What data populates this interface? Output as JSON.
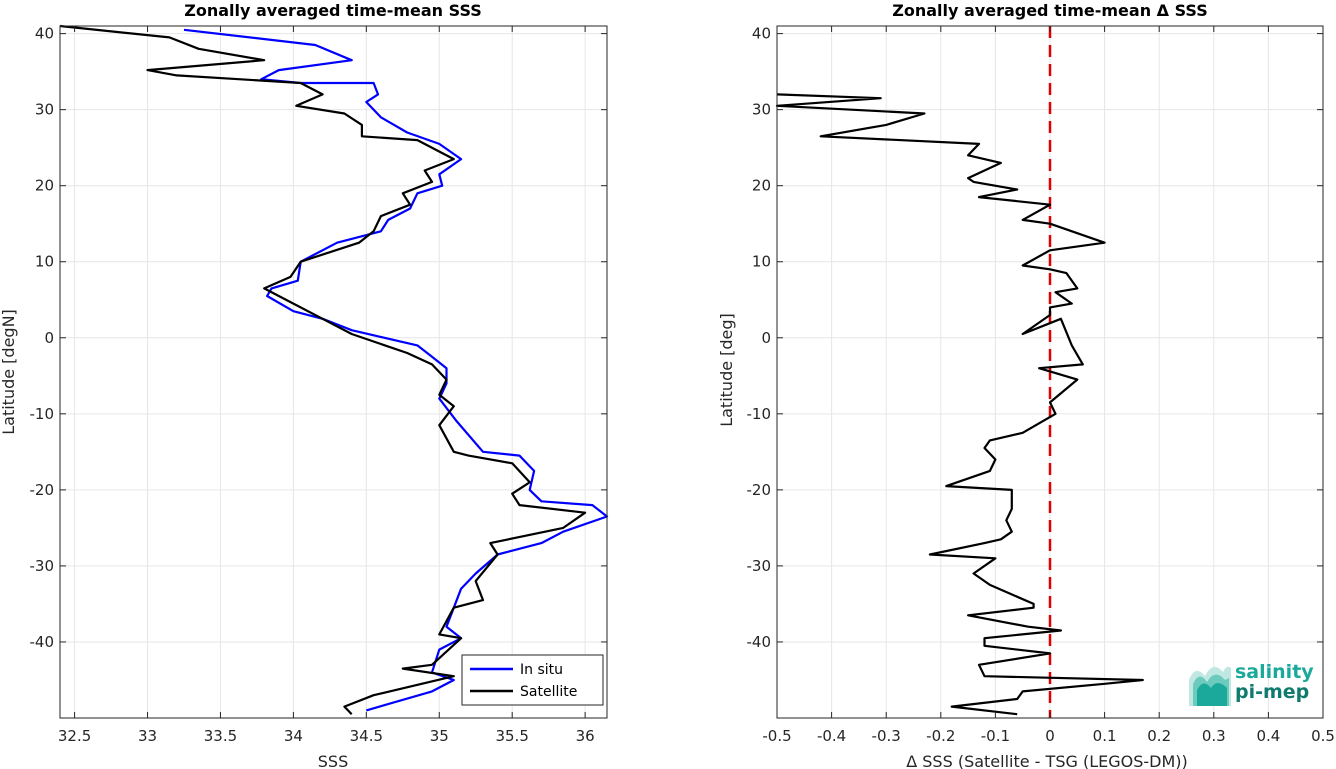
{
  "colors": {
    "in_situ": "#0000ff",
    "satellite": "#000000",
    "zero_line": "#e00000",
    "logo_teal": "#1aa99a",
    "logo_dark": "#0f7a6e"
  },
  "logo": {
    "line1": "salinity",
    "line2": "pi-mep"
  },
  "chart_data": [
    {
      "type": "line",
      "title": "Zonally averaged time-mean SSS",
      "xlabel": "SSS",
      "ylabel": "Latitude [degN]",
      "xlim": [
        32.4,
        36.15
      ],
      "ylim": [
        -50,
        41
      ],
      "xticks": [
        32.5,
        33,
        33.5,
        34,
        34.5,
        35,
        35.5,
        36
      ],
      "xtick_labels": [
        "32.5",
        "33",
        "33.5",
        "34",
        "34.5",
        "35",
        "35.5",
        "36"
      ],
      "yticks": [
        40,
        30,
        20,
        10,
        0,
        -10,
        -20,
        -30,
        -40
      ],
      "ytick_labels": [
        "40",
        "30",
        "20",
        "10",
        "0",
        "-10",
        "-20",
        "-30",
        "-40"
      ],
      "grid": true,
      "legend": "bottom-right",
      "series": [
        {
          "name": "In situ",
          "color": "#0000ff",
          "x": [
            33.25,
            34.15,
            34.4,
            33.9,
            33.78,
            34.05,
            34.55,
            34.58,
            34.5,
            34.6,
            34.78,
            35.0,
            35.15,
            35.0,
            35.02,
            34.85,
            34.8,
            34.65,
            34.6,
            34.3,
            34.05,
            34.03,
            33.85,
            33.82,
            34.0,
            34.2,
            34.4,
            34.85,
            34.95,
            35.05,
            35.05,
            35.0,
            35.12,
            35.3,
            35.55,
            35.65,
            35.62,
            35.7,
            36.05,
            36.15,
            35.85,
            35.7,
            35.4,
            35.25,
            35.15,
            35.05,
            35.15,
            35.0,
            34.95,
            35.1,
            34.95,
            34.5
          ],
          "y": [
            40.5,
            38.5,
            36.5,
            35.2,
            34.0,
            33.5,
            33.5,
            32.0,
            31.0,
            29.0,
            27.0,
            25.5,
            23.5,
            21.5,
            20.0,
            19.0,
            17.0,
            15.5,
            14.0,
            12.5,
            10.0,
            7.5,
            6.5,
            5.5,
            3.5,
            2.5,
            1.0,
            -1.0,
            -2.5,
            -4.0,
            -6.0,
            -8.0,
            -11.0,
            -15.0,
            -15.5,
            -17.5,
            -20.0,
            -21.5,
            -22.0,
            -23.5,
            -25.5,
            -27.0,
            -28.5,
            -31.0,
            -33.0,
            -38.0,
            -39.5,
            -41.0,
            -44.0,
            -45.0,
            -46.5,
            -49.0
          ]
        },
        {
          "name": "Satellite",
          "color": "#000000",
          "x": [
            32.4,
            33.15,
            33.35,
            33.8,
            33.0,
            33.2,
            34.05,
            34.2,
            34.02,
            34.35,
            34.47,
            34.47,
            34.85,
            35.1,
            34.9,
            34.95,
            34.75,
            34.8,
            34.6,
            34.55,
            34.45,
            34.05,
            33.98,
            33.8,
            34.0,
            34.2,
            34.4,
            34.78,
            34.95,
            35.05,
            35.0,
            35.1,
            35.0,
            35.1,
            35.2,
            35.5,
            35.62,
            35.5,
            35.55,
            36.0,
            35.85,
            35.35,
            35.4,
            35.25,
            35.3,
            35.1,
            35.0,
            35.15,
            34.95,
            34.75,
            35.1,
            34.55,
            34.35,
            34.4
          ],
          "y": [
            41.0,
            39.5,
            38.0,
            36.5,
            35.2,
            34.5,
            33.5,
            32.0,
            30.5,
            29.5,
            28.0,
            26.5,
            26.0,
            23.5,
            22.0,
            20.5,
            19.0,
            17.5,
            16.0,
            14.0,
            12.5,
            10.0,
            8.0,
            6.5,
            4.5,
            2.5,
            0.5,
            -2.0,
            -3.5,
            -5.5,
            -7.5,
            -9.0,
            -11.5,
            -15.0,
            -15.5,
            -16.5,
            -19.0,
            -20.5,
            -22.0,
            -23.0,
            -25.0,
            -27.0,
            -28.5,
            -32.0,
            -34.5,
            -35.5,
            -39.0,
            -39.5,
            -43.0,
            -43.5,
            -44.5,
            -47.0,
            -48.5,
            -49.5
          ]
        }
      ]
    },
    {
      "type": "line",
      "title": "Zonally averaged time-mean Δ SSS",
      "xlabel": "Δ SSS (Satellite - TSG (LEGOS-DM))",
      "ylabel": "Latitude [deg]",
      "xlim": [
        -0.5,
        0.5
      ],
      "ylim": [
        -50,
        41
      ],
      "xticks": [
        -0.5,
        -0.4,
        -0.3,
        -0.2,
        -0.1,
        0,
        0.1,
        0.2,
        0.3,
        0.4,
        0.5
      ],
      "xtick_labels": [
        "-0.5",
        "-0.4",
        "-0.3",
        "-0.2",
        "-0.1",
        "0",
        "0.1",
        "0.2",
        "0.3",
        "0.4",
        "0.5"
      ],
      "yticks": [
        40,
        30,
        20,
        10,
        0,
        -10,
        -20,
        -30,
        -40
      ],
      "ytick_labels": [
        "40",
        "30",
        "20",
        "10",
        "0",
        "-10",
        "-20",
        "-30",
        "-40"
      ],
      "grid": true,
      "reference_line": {
        "x": 0,
        "style": "dashed",
        "color": "#e00000"
      },
      "series": [
        {
          "color": "#000000",
          "x": [
            -0.5,
            -0.31,
            -0.5,
            -0.23,
            -0.3,
            -0.42,
            -0.13,
            -0.15,
            -0.09,
            -0.15,
            -0.14,
            -0.06,
            -0.13,
            0.0,
            -0.05,
            0.0,
            0.1,
            0.0,
            -0.05,
            0.0,
            0.03,
            0.05,
            0.01,
            0.04,
            0.0,
            0.0,
            -0.05,
            0.02,
            0.04,
            0.06,
            -0.02,
            0.05,
            0.0,
            0.01,
            -0.05,
            -0.11,
            -0.12,
            -0.1,
            -0.11,
            -0.19,
            -0.07,
            -0.07,
            -0.08,
            -0.07,
            -0.09,
            -0.12,
            -0.22,
            -0.1,
            -0.14,
            -0.11,
            -0.03,
            -0.03,
            -0.15,
            -0.04,
            0.02,
            -0.12,
            -0.12,
            0.0,
            -0.13,
            -0.12,
            0.17,
            0.1,
            -0.05,
            -0.06,
            -0.18,
            -0.06
          ],
          "y": [
            32.0,
            31.5,
            30.5,
            29.5,
            28.0,
            26.5,
            25.5,
            24.0,
            23.0,
            21.0,
            20.5,
            19.5,
            18.5,
            17.5,
            15.5,
            15.0,
            12.5,
            11.5,
            9.5,
            9.0,
            8.5,
            6.5,
            6.0,
            4.5,
            4.0,
            3.0,
            0.5,
            2.5,
            -1.0,
            -3.5,
            -4.0,
            -5.5,
            -8.5,
            -10.0,
            -12.5,
            -13.5,
            -14.5,
            -16.0,
            -17.5,
            -19.5,
            -20.0,
            -22.5,
            -24.0,
            -25.5,
            -26.5,
            -27.0,
            -28.5,
            -29.0,
            -31.0,
            -32.5,
            -35.0,
            -35.5,
            -36.5,
            -38.0,
            -38.5,
            -39.5,
            -40.5,
            -41.5,
            -43.0,
            -44.5,
            -45.0,
            -45.5,
            -46.5,
            -47.5,
            -48.5,
            -49.5
          ]
        }
      ]
    }
  ]
}
